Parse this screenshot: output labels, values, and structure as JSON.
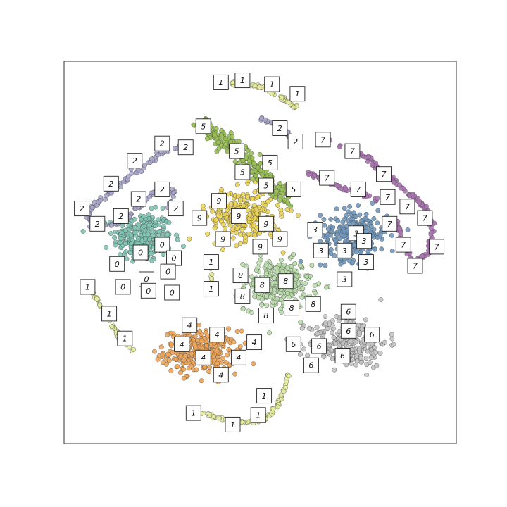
{
  "chart_data": {
    "type": "scatter",
    "title": "",
    "xlabel": "",
    "ylabel": "",
    "xlim": [
      0,
      100
    ],
    "ylim": [
      0,
      100
    ],
    "grid": false,
    "ticks": false,
    "colors": {
      "0": "#7fc5b4",
      "1": "#e6ec9a",
      "2": "#a9a6cc",
      "3": "#6f98bf",
      "4": "#f0a455",
      "5": "#98c052",
      "6": "#c4c4c4",
      "7": "#ab72b3",
      "8": "#b9dcaa",
      "9": "#ecd455"
    },
    "clusters": [
      {
        "digit": "0",
        "shape": "blob",
        "center": [
          20,
          54
        ],
        "radius": [
          7.5,
          6.5
        ],
        "count": 260
      },
      {
        "digit": "4",
        "shape": "blob",
        "center": [
          35,
          24
        ],
        "radius": [
          9.5,
          5.5
        ],
        "count": 300
      },
      {
        "digit": "8",
        "shape": "blob",
        "center": [
          54.5,
          41.5
        ],
        "radius": [
          8.5,
          6.5
        ],
        "count": 280
      },
      {
        "digit": "6",
        "shape": "blob",
        "center": [
          72.5,
          26.5
        ],
        "radius": [
          10,
          6.5
        ],
        "count": 260
      },
      {
        "digit": "3",
        "shape": "blob",
        "center": [
          74,
          54.5
        ],
        "radius": [
          8.5,
          6.5
        ],
        "count": 260
      },
      {
        "digit": "9",
        "shape": "blob",
        "center": [
          46,
          60
        ],
        "radius": [
          9.5,
          7
        ],
        "count": 260
      },
      {
        "digit": "5",
        "shape": "curve",
        "path": [
          [
            35,
            83
          ],
          [
            41,
            79
          ],
          [
            47,
            74
          ],
          [
            51,
            70
          ],
          [
            55,
            66
          ],
          [
            58,
            64
          ]
        ],
        "width": 3.5,
        "count": 240
      },
      {
        "digit": "1",
        "shape": "curve",
        "path": [
          [
            40,
            94.5
          ],
          [
            46,
            94
          ],
          [
            51,
            93
          ],
          [
            55,
            91
          ],
          [
            59,
            88
          ]
        ],
        "width": 0.8,
        "count": 60
      },
      {
        "digit": "1",
        "shape": "curve",
        "path": [
          [
            6,
            41
          ],
          [
            10,
            35
          ],
          [
            14,
            28
          ],
          [
            18,
            24
          ]
        ],
        "width": 0.6,
        "count": 45
      },
      {
        "digit": "1",
        "shape": "curve",
        "path": [
          [
            35,
            8
          ],
          [
            42,
            6
          ],
          [
            48,
            5.5
          ],
          [
            52,
            7
          ],
          [
            55,
            11
          ],
          [
            57,
            18
          ]
        ],
        "width": 0.7,
        "count": 70
      },
      {
        "digit": "1",
        "shape": "curve",
        "path": [
          [
            37.5,
            47.5
          ],
          [
            37.5,
            42
          ]
        ],
        "width": 0.4,
        "count": 10
      },
      {
        "digit": "2",
        "shape": "curve",
        "path": [
          [
            31,
            78
          ],
          [
            25,
            76
          ],
          [
            19,
            72
          ],
          [
            12,
            66
          ],
          [
            6,
            61
          ],
          [
            7,
            57
          ],
          [
            12,
            57
          ],
          [
            17,
            60
          ],
          [
            21,
            64
          ],
          [
            25,
            67
          ],
          [
            28,
            66
          ],
          [
            27,
            62
          ]
        ],
        "width": 0.9,
        "count": 150
      },
      {
        "digit": "2",
        "shape": "curve",
        "path": [
          [
            50,
            85
          ],
          [
            55,
            83
          ],
          [
            59,
            79
          ]
        ],
        "width": 0.6,
        "count": 30
      },
      {
        "digit": "7",
        "shape": "curve",
        "path": [
          [
            67,
            79
          ],
          [
            72,
            77.5
          ],
          [
            77,
            75
          ],
          [
            82,
            71
          ],
          [
            87,
            66
          ],
          [
            92,
            62
          ],
          [
            94,
            56
          ],
          [
            93,
            50
          ],
          [
            89,
            47
          ],
          [
            86,
            53
          ],
          [
            85,
            58
          ]
        ],
        "width": 0.9,
        "count": 160
      },
      {
        "digit": "7",
        "shape": "curve",
        "path": [
          [
            62,
            71
          ],
          [
            68,
            68
          ],
          [
            74,
            66
          ],
          [
            80,
            64
          ]
        ],
        "width": 0.8,
        "count": 50
      }
    ],
    "thumbnails": [
      {
        "digit": "1",
        "x": 40,
        "y": 94.5
      },
      {
        "digit": "1",
        "x": 45.5,
        "y": 95
      },
      {
        "digit": "1",
        "x": 53,
        "y": 94
      },
      {
        "digit": "1",
        "x": 59.5,
        "y": 91.5
      },
      {
        "digit": "5",
        "x": 35.5,
        "y": 83
      },
      {
        "digit": "5",
        "x": 44,
        "y": 76.5
      },
      {
        "digit": "5",
        "x": 52.5,
        "y": 73.5
      },
      {
        "digit": "5",
        "x": 45.5,
        "y": 71
      },
      {
        "digit": "5",
        "x": 51.5,
        "y": 67.5
      },
      {
        "digit": "5",
        "x": 58.5,
        "y": 66.5
      },
      {
        "digit": "2",
        "x": 55,
        "y": 82.5
      },
      {
        "digit": "2",
        "x": 59,
        "y": 79
      },
      {
        "digit": "2",
        "x": 25,
        "y": 78.5
      },
      {
        "digit": "2",
        "x": 31,
        "y": 77.5
      },
      {
        "digit": "2",
        "x": 18,
        "y": 74
      },
      {
        "digit": "2",
        "x": 12,
        "y": 68
      },
      {
        "digit": "2",
        "x": 25,
        "y": 66.5
      },
      {
        "digit": "2",
        "x": 4.5,
        "y": 61.5
      },
      {
        "digit": "2",
        "x": 19,
        "y": 64
      },
      {
        "digit": "2",
        "x": 14.5,
        "y": 59.5
      },
      {
        "digit": "2",
        "x": 28.5,
        "y": 61.5
      },
      {
        "digit": "2",
        "x": 8.5,
        "y": 57.5
      },
      {
        "digit": "7",
        "x": 66,
        "y": 79.5
      },
      {
        "digit": "7",
        "x": 73.5,
        "y": 76.5
      },
      {
        "digit": "7",
        "x": 81.5,
        "y": 70.5
      },
      {
        "digit": "7",
        "x": 67,
        "y": 69.5
      },
      {
        "digit": "7",
        "x": 75,
        "y": 66.5
      },
      {
        "digit": "7",
        "x": 82.5,
        "y": 64.5
      },
      {
        "digit": "7",
        "x": 87.5,
        "y": 62
      },
      {
        "digit": "7",
        "x": 92,
        "y": 59
      },
      {
        "digit": "7",
        "x": 83,
        "y": 57.5
      },
      {
        "digit": "7",
        "x": 86.5,
        "y": 52
      },
      {
        "digit": "7",
        "x": 95,
        "y": 51.5
      },
      {
        "digit": "7",
        "x": 89.5,
        "y": 46.5
      },
      {
        "digit": "9",
        "x": 39.5,
        "y": 63.5
      },
      {
        "digit": "9",
        "x": 34.5,
        "y": 59
      },
      {
        "digit": "9",
        "x": 44.5,
        "y": 59.5
      },
      {
        "digit": "9",
        "x": 51.5,
        "y": 57.5
      },
      {
        "digit": "9",
        "x": 40.5,
        "y": 53.5
      },
      {
        "digit": "9",
        "x": 50,
        "y": 51.5
      },
      {
        "digit": "9",
        "x": 55,
        "y": 53.5
      },
      {
        "digit": "3",
        "x": 64,
        "y": 56
      },
      {
        "digit": "3",
        "x": 74.5,
        "y": 55
      },
      {
        "digit": "3",
        "x": 65.5,
        "y": 50.5
      },
      {
        "digit": "3",
        "x": 71.5,
        "y": 50.5
      },
      {
        "digit": "3",
        "x": 76.5,
        "y": 53
      },
      {
        "digit": "3",
        "x": 77,
        "y": 47.5
      },
      {
        "digit": "3",
        "x": 71.5,
        "y": 43
      },
      {
        "digit": "0",
        "x": 25,
        "y": 52
      },
      {
        "digit": "0",
        "x": 19.5,
        "y": 50
      },
      {
        "digit": "0",
        "x": 28,
        "y": 48.5
      },
      {
        "digit": "0",
        "x": 13.5,
        "y": 47
      },
      {
        "digit": "0",
        "x": 26.5,
        "y": 45
      },
      {
        "digit": "0",
        "x": 21,
        "y": 43
      },
      {
        "digit": "0",
        "x": 15,
        "y": 41
      },
      {
        "digit": "0",
        "x": 21.5,
        "y": 40
      },
      {
        "digit": "0",
        "x": 27.5,
        "y": 39.5
      },
      {
        "digit": "1",
        "x": 37.5,
        "y": 47.5
      },
      {
        "digit": "1",
        "x": 37.5,
        "y": 40.5
      },
      {
        "digit": "8",
        "x": 45,
        "y": 44
      },
      {
        "digit": "8",
        "x": 56.5,
        "y": 42.5
      },
      {
        "digit": "8",
        "x": 50.5,
        "y": 41.5
      },
      {
        "digit": "8",
        "x": 63.5,
        "y": 36.5
      },
      {
        "digit": "8",
        "x": 58,
        "y": 35.5
      },
      {
        "digit": "8",
        "x": 45.5,
        "y": 38.5
      },
      {
        "digit": "8",
        "x": 51.5,
        "y": 33.5
      },
      {
        "digit": "1",
        "x": 6,
        "y": 41
      },
      {
        "digit": "1",
        "x": 11.5,
        "y": 34
      },
      {
        "digit": "1",
        "x": 15.5,
        "y": 27.5
      },
      {
        "digit": "4",
        "x": 32,
        "y": 31
      },
      {
        "digit": "4",
        "x": 39,
        "y": 28.5
      },
      {
        "digit": "4",
        "x": 48.5,
        "y": 26.5
      },
      {
        "digit": "4",
        "x": 30,
        "y": 26
      },
      {
        "digit": "4",
        "x": 35.5,
        "y": 22.5
      },
      {
        "digit": "4",
        "x": 44.5,
        "y": 22.5
      },
      {
        "digit": "4",
        "x": 40,
        "y": 18
      },
      {
        "digit": "6",
        "x": 72.5,
        "y": 34.5
      },
      {
        "digit": "6",
        "x": 72.5,
        "y": 29.5
      },
      {
        "digit": "6",
        "x": 78.5,
        "y": 28.5
      },
      {
        "digit": "6",
        "x": 58.5,
        "y": 26
      },
      {
        "digit": "6",
        "x": 65,
        "y": 25.5
      },
      {
        "digit": "6",
        "x": 71,
        "y": 23
      },
      {
        "digit": "6",
        "x": 63,
        "y": 20.5
      },
      {
        "digit": "1",
        "x": 51,
        "y": 12.5
      },
      {
        "digit": "1",
        "x": 33,
        "y": 8
      },
      {
        "digit": "1",
        "x": 49.5,
        "y": 7.5
      },
      {
        "digit": "1",
        "x": 43,
        "y": 5
      }
    ]
  }
}
